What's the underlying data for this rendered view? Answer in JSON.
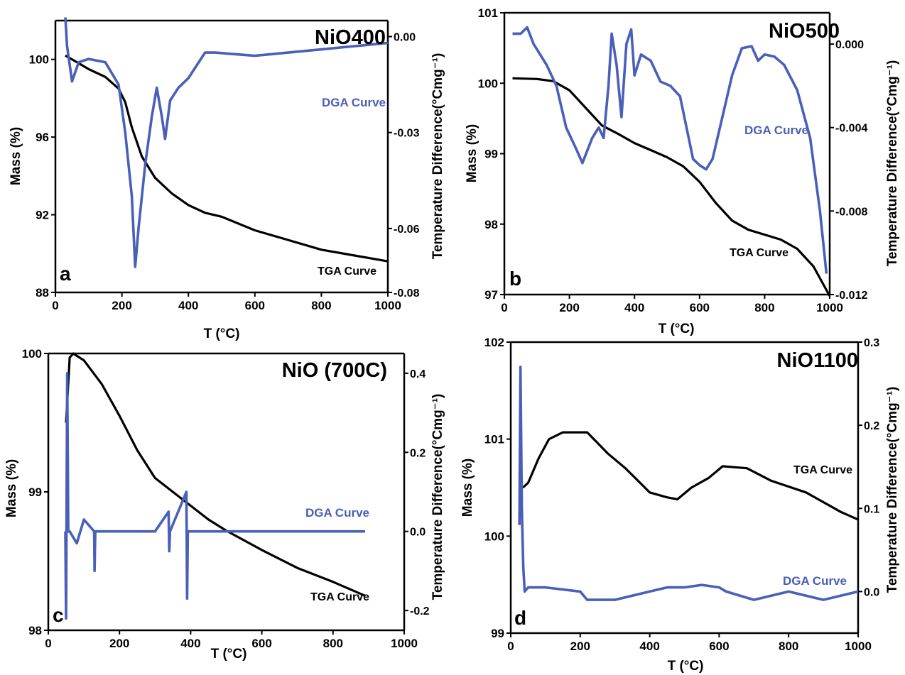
{
  "colors": {
    "tga": "#000000",
    "dga": "#4a5fb8",
    "axis": "#000000"
  },
  "chart_data": [
    {
      "type": "line",
      "title": "NiO400",
      "panel": "a",
      "xlabel": "T (°C)",
      "ylabel": "Mass (%)",
      "y2label": "Temperature Difference(°Cmg⁻¹)",
      "xlim": [
        0,
        1000
      ],
      "ylim": [
        88,
        102
      ],
      "y2lim": [
        -0.08,
        0.005
      ],
      "xticks": [
        "0",
        "200",
        "400",
        "600",
        "800",
        "1000"
      ],
      "yticks": [
        "88",
        "92",
        "96",
        "100"
      ],
      "y2ticks": [
        "-0.08",
        "-0.06",
        "-0.03",
        "0.00"
      ],
      "series": [
        {
          "name": "TGA Curve",
          "axis": "left",
          "x": [
            30,
            60,
            100,
            150,
            190,
            210,
            230,
            260,
            300,
            350,
            400,
            450,
            500,
            600,
            700,
            800,
            900,
            1000
          ],
          "y": [
            100.2,
            99.9,
            99.5,
            99.1,
            98.5,
            97.8,
            96.5,
            95.0,
            93.9,
            93.1,
            92.5,
            92.1,
            91.9,
            91.2,
            90.7,
            90.2,
            89.9,
            89.6
          ]
        },
        {
          "name": "DGA Curve",
          "axis": "right",
          "x": [
            30,
            35,
            50,
            70,
            100,
            150,
            190,
            210,
            230,
            240,
            250,
            270,
            290,
            305,
            320,
            330,
            345,
            370,
            400,
            450,
            480,
            600,
            700,
            800,
            900,
            1000
          ],
          "y": [
            0.006,
            -0.003,
            -0.014,
            -0.008,
            -0.007,
            -0.008,
            -0.015,
            -0.03,
            -0.05,
            -0.072,
            -0.06,
            -0.04,
            -0.025,
            -0.016,
            -0.025,
            -0.032,
            -0.02,
            -0.016,
            -0.013,
            -0.005,
            -0.005,
            -0.006,
            -0.005,
            -0.004,
            -0.003,
            -0.002
          ]
        }
      ]
    },
    {
      "type": "line",
      "title": "NiO500",
      "panel": "b",
      "xlabel": "T (°C)",
      "ylabel": "Mass (%)",
      "y2label": "Temperature Difference(°Cmg⁻¹)",
      "xlim": [
        0,
        1000
      ],
      "ylim": [
        97,
        101
      ],
      "y2lim": [
        -0.012,
        0.0015
      ],
      "xticks": [
        "0",
        "200",
        "400",
        "600",
        "800",
        "1000"
      ],
      "yticks": [
        "97",
        "98",
        "99",
        "100",
        "101"
      ],
      "y2ticks": [
        "-0.012",
        "-0.008",
        "-0.004",
        "0.000"
      ],
      "series": [
        {
          "name": "TGA Curve",
          "axis": "left",
          "x": [
            25,
            100,
            150,
            200,
            250,
            300,
            350,
            400,
            450,
            500,
            550,
            600,
            650,
            700,
            750,
            800,
            850,
            900,
            950,
            1000
          ],
          "y": [
            100.07,
            100.06,
            100.03,
            99.9,
            99.65,
            99.4,
            99.28,
            99.15,
            99.05,
            98.95,
            98.82,
            98.6,
            98.3,
            98.05,
            97.92,
            97.85,
            97.78,
            97.65,
            97.4,
            96.98
          ]
        },
        {
          "name": "DGA Curve",
          "axis": "right",
          "x": [
            25,
            50,
            70,
            90,
            130,
            160,
            190,
            220,
            240,
            270,
            290,
            305,
            320,
            330,
            345,
            360,
            375,
            390,
            400,
            420,
            450,
            480,
            510,
            540,
            580,
            600,
            620,
            640,
            670,
            700,
            730,
            760,
            780,
            800,
            830,
            860,
            900,
            940,
            970,
            990
          ],
          "y": [
            0.0005,
            0.0005,
            0.0008,
            0.0,
            -0.001,
            -0.002,
            -0.004,
            -0.005,
            -0.0057,
            -0.0045,
            -0.004,
            -0.0045,
            -0.002,
            0.0005,
            -0.001,
            -0.0035,
            0.0,
            0.0007,
            -0.0015,
            -0.0005,
            -0.0008,
            -0.0018,
            -0.002,
            -0.0025,
            -0.0055,
            -0.0058,
            -0.006,
            -0.0055,
            -0.0035,
            -0.0015,
            -0.0002,
            -0.0001,
            -0.0008,
            -0.0005,
            -0.0006,
            -0.001,
            -0.0022,
            -0.0045,
            -0.008,
            -0.011
          ]
        }
      ]
    },
    {
      "type": "line",
      "title": "NiO (700C)",
      "panel": "c",
      "xlabel": "T (°C)",
      "ylabel": "Mass (%)",
      "y2label": "Temperature Difference(°Cmg⁻¹)",
      "xlim": [
        0,
        1000
      ],
      "ylim": [
        98,
        100
      ],
      "y2lim": [
        -0.25,
        0.45
      ],
      "xticks": [
        "0",
        "200",
        "400",
        "600",
        "800",
        "1000"
      ],
      "yticks": [
        "98",
        "99",
        "100"
      ],
      "y2ticks": [
        "-0.2",
        "0.0",
        "0.2",
        "0.4"
      ],
      "series": [
        {
          "name": "TGA Curve",
          "axis": "left",
          "x": [
            50,
            60,
            70,
            100,
            150,
            200,
            250,
            300,
            350,
            400,
            450,
            500,
            600,
            700,
            800,
            890
          ],
          "y": [
            99.5,
            99.97,
            100.0,
            99.95,
            99.78,
            99.55,
            99.3,
            99.1,
            99.0,
            98.9,
            98.8,
            98.72,
            98.58,
            98.45,
            98.35,
            98.25
          ]
        },
        {
          "name": "DGA Curve",
          "axis": "right",
          "x": [
            48,
            50,
            53,
            56,
            60,
            80,
            100,
            129,
            130,
            132,
            200,
            300,
            338,
            340,
            342,
            388,
            390,
            392,
            450,
            500,
            600,
            700,
            800,
            890
          ],
          "y": [
            0.0,
            -0.22,
            0.4,
            0.0,
            0.0,
            -0.03,
            0.03,
            0.0,
            -0.1,
            0.0,
            0.0,
            0.0,
            0.05,
            -0.05,
            0.0,
            0.1,
            -0.17,
            0.0,
            0.0,
            0.0,
            0.0,
            0.0,
            0.0,
            0.0
          ]
        }
      ]
    },
    {
      "type": "line",
      "title": "NiO1100",
      "panel": "d",
      "xlabel": "T (°C)",
      "ylabel": "Mass (%)",
      "y2label": "Temperature Difference(°Cmg⁻¹)",
      "xlim": [
        0,
        1000
      ],
      "ylim": [
        99,
        102
      ],
      "y2lim": [
        -0.05,
        0.3
      ],
      "xticks": [
        "0",
        "200",
        "400",
        "600",
        "800",
        "1000"
      ],
      "yticks": [
        "99",
        "100",
        "101",
        "102"
      ],
      "y2ticks": [
        "0.0",
        "0.1",
        "0.2",
        "0.3"
      ],
      "series": [
        {
          "name": "TGA Curve",
          "axis": "left",
          "x": [
            35,
            50,
            80,
            110,
            150,
            220,
            280,
            330,
            400,
            450,
            480,
            520,
            570,
            610,
            680,
            750,
            850,
            950,
            1000
          ],
          "y": [
            100.5,
            100.55,
            100.8,
            101.0,
            101.07,
            101.07,
            100.85,
            100.7,
            100.45,
            100.4,
            100.38,
            100.5,
            100.6,
            100.72,
            100.7,
            100.57,
            100.45,
            100.25,
            100.17
          ]
        },
        {
          "name": "DGA Curve",
          "axis": "right",
          "x": [
            25,
            28,
            32,
            36,
            40,
            50,
            100,
            200,
            220,
            300,
            400,
            450,
            500,
            550,
            600,
            620,
            700,
            800,
            900,
            1000
          ],
          "y": [
            0.08,
            0.27,
            0.1,
            0.03,
            0.0,
            0.005,
            0.005,
            0.0,
            -0.01,
            -0.01,
            0.0,
            0.005,
            0.005,
            0.008,
            0.005,
            0.0,
            -0.01,
            0.0,
            -0.01,
            0.0
          ]
        }
      ]
    }
  ],
  "labels": {
    "tga": "TGA Curve",
    "dga": "DGA Curve"
  }
}
